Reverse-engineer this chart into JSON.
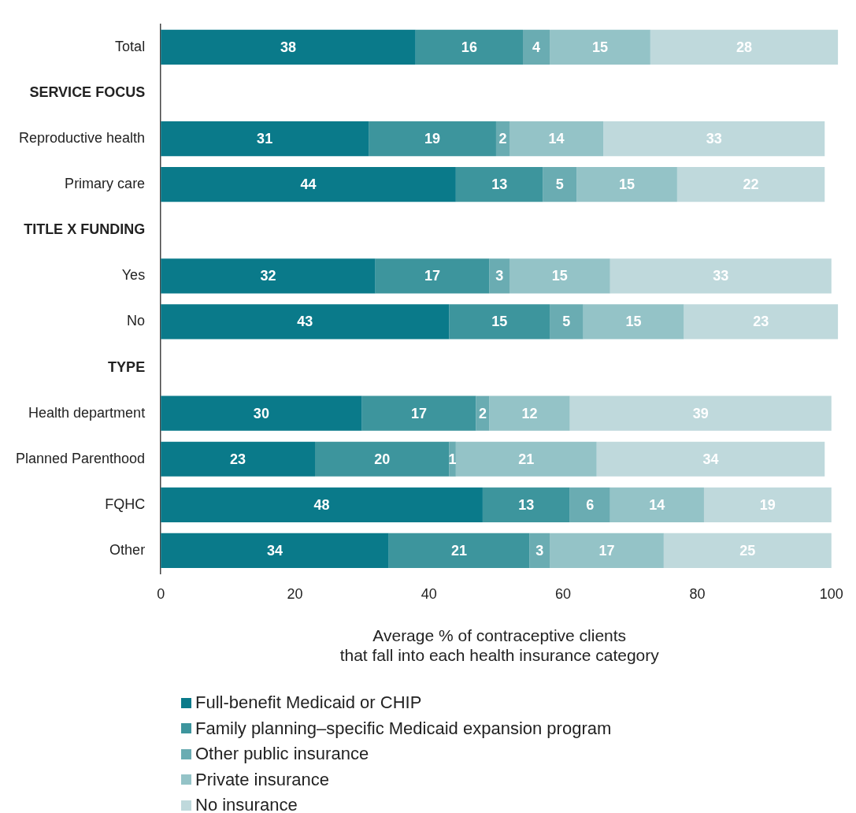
{
  "chart_data": {
    "type": "bar",
    "orientation": "horizontal",
    "stacked": true,
    "categories": [
      "Total",
      "SERVICE FOCUS",
      "Reproductive health",
      "Primary care",
      "TITLE X FUNDING",
      "Yes",
      "No",
      "TYPE",
      "Health department",
      "Planned Parenthood",
      "FQHC",
      "Other"
    ],
    "series": [
      {
        "name": "Full-benefit Medicaid or CHIP",
        "color": "#0a7a8a",
        "values": [
          38,
          null,
          31,
          44,
          null,
          32,
          43,
          null,
          30,
          23,
          48,
          34
        ]
      },
      {
        "name": "Family planning–specific Medicaid expansion program",
        "color": "#3d959d",
        "values": [
          16,
          null,
          19,
          13,
          null,
          17,
          15,
          null,
          17,
          20,
          13,
          21
        ]
      },
      {
        "name": "Other public insurance",
        "color": "#6aacb2",
        "values": [
          4,
          null,
          2,
          5,
          null,
          3,
          5,
          null,
          2,
          1,
          6,
          3
        ]
      },
      {
        "name": "Private insurance",
        "color": "#94c3c7",
        "values": [
          15,
          null,
          14,
          15,
          null,
          15,
          15,
          null,
          12,
          21,
          14,
          17
        ]
      },
      {
        "name": "No insurance",
        "color": "#bfd9dc",
        "values": [
          28,
          null,
          33,
          22,
          null,
          33,
          23,
          null,
          39,
          34,
          19,
          25
        ]
      }
    ],
    "xlim": [
      0,
      101
    ],
    "xticks": [
      0,
      20,
      40,
      60,
      80,
      100
    ],
    "xlabel": "Average % of contraceptive clients\nthat fall into each health insurance category",
    "data_labels": true,
    "grid": false,
    "legend": "bottom"
  }
}
